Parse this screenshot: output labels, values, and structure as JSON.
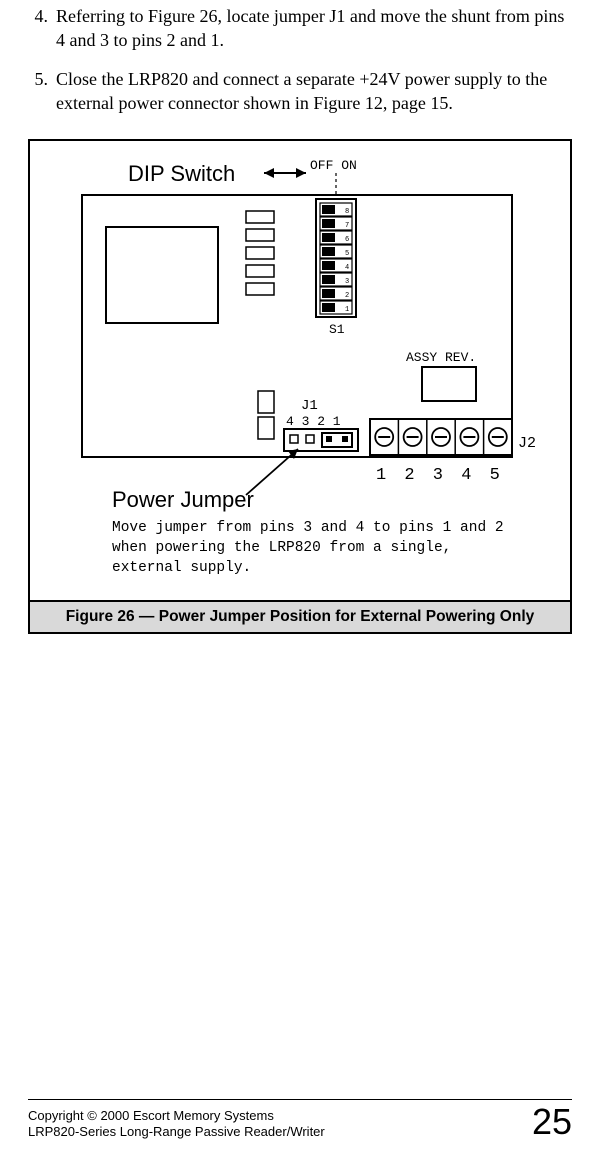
{
  "list": {
    "item4": {
      "num": "4.",
      "text": "Referring to Figure 26, locate jumper J1 and move the shunt from pins 4 and 3 to pins 2 and 1."
    },
    "item5": {
      "num": "5.",
      "text": "Close the LRP820 and connect a separate +24V power supply to the external power connector shown in Figure 12, page 15."
    }
  },
  "figure": {
    "caption": "Figure 26 — Power Jumper Position for External Powering Only",
    "dip_label": "DIP Switch",
    "offon": "OFF   ON",
    "s1": "S1",
    "assy": "ASSY REV.",
    "j1": "J1",
    "j2": "J2",
    "jpins": "4  3 2 1",
    "power_label": "Power Jumper",
    "j2nums": "1  2  3  4  5",
    "note1": "Move jumper from pins 3 and 4 to pins 1 and 2",
    "note2": "when powering the LRP820 from a single,",
    "note3": "external supply.",
    "dip_count": 8,
    "j2_terminals": 5,
    "colors": {
      "stroke": "#000000",
      "fill_white": "#ffffff",
      "fill_black": "#000000"
    }
  },
  "footer": {
    "line1": "Copyright © 2000 Escort Memory Systems",
    "line2": "LRP820-Series Long-Range Passive Reader/Writer",
    "page": "25"
  }
}
